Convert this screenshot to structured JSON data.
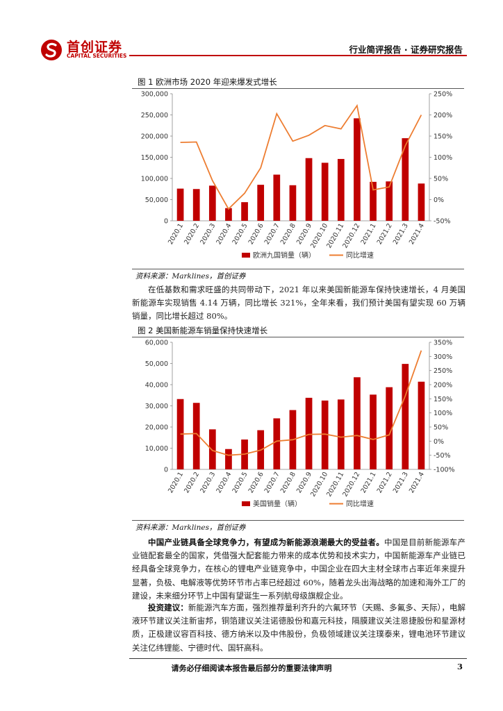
{
  "header": {
    "logo_cn": "首创证券",
    "logo_en": "CAPITAL SECURITIES",
    "report_type": "行业简评报告 · 证券研究报告",
    "brand_color": "#c00000"
  },
  "figure1": {
    "title": "图 1 欧洲市场 2020 年迎来爆发式增长",
    "source": "资料来源：Marklines，首创证券"
  },
  "figure2": {
    "title": "图 2 美国新能源车销量保持快速增长",
    "source": "资料来源：Marklines，首创证券"
  },
  "paragraphs": {
    "p1": "在低基数和需求旺盛的共同带动下，2021 年以来美国新能源车保持快速增长，4 月美国新能源车实现销售 4.14 万辆，同比增长 321%，全年来看，我们预计美国有望实现 60 万辆销量，同比增长超过 80%。",
    "p2_bold": "中国产业链具备全球竞争力，有望成为新能源浪潮最大的受益者。",
    "p2_rest": "中国是目前新能源车产业链配套最全的国家，凭借强大配套能力带来的成本优势和技术实力，中国新能源车产业链已经具备全球竞争力，在核心的锂电产业链竞争中，中国企业在四大主材全球市占率近年来提升显著，负极、电解液等优势环节市占率已经超过 60%，随着龙头出海战略的加速和海外工厂的建设，未来细分环节上中国有望诞生一系列航母级旗舰企业。",
    "p3_bold": "投资建议：",
    "p3_rest": "新能源汽车方面，强烈推荐量利齐升的六氟环节（天赐、多氟多、天际），电解液环节建议关注新宙邦，铜箔建议关注诺德股份和嘉元科技，隔膜建议关注恩捷股份和星源材质，正极建议容百科技、德方纳米以及中伟股份，负极领域建议关注璞泰来，锂电池环节建议关注亿纬锂能、宁德时代、国轩高科。"
  },
  "footer": {
    "disclaimer": "请务必仔细阅读本报告最后部分的重要法律声明",
    "page_number": "3"
  },
  "chart_data": [
    {
      "type": "bar",
      "title": "图 1 欧洲市场 2020 年迎来爆发式增长",
      "categories": [
        "2020.1",
        "2020.2",
        "2020.3",
        "2020.4",
        "2020.5",
        "2020.6",
        "2020.7",
        "2020.8",
        "2020.9",
        "2020.10",
        "2020.11",
        "2020.12",
        "2021.1",
        "2021.2",
        "2021.3",
        "2021.4"
      ],
      "series": [
        {
          "name": "欧洲九国销量（辆）",
          "type": "bar",
          "axis": "left",
          "color": "#c00000",
          "values": [
            76000,
            75000,
            83000,
            30000,
            44000,
            85000,
            109000,
            84000,
            148000,
            137000,
            146000,
            242000,
            92000,
            93000,
            195000,
            88000
          ]
        },
        {
          "name": "同比增速",
          "type": "line",
          "axis": "right",
          "color": "#ed7d31",
          "values": [
            1.35,
            1.36,
            0.45,
            -0.22,
            0.15,
            0.75,
            2.03,
            1.38,
            1.52,
            1.75,
            1.67,
            2.22,
            0.23,
            0.3,
            1.27,
            2.0
          ]
        }
      ],
      "ylim_left": [
        0,
        300000
      ],
      "yticks_left": [
        "0",
        "50,000",
        "100,000",
        "150,000",
        "200,000",
        "250,000",
        "300,000"
      ],
      "ylim_right": [
        -0.5,
        2.5
      ],
      "yticks_right": [
        "-50%",
        "0%",
        "50%",
        "100%",
        "150%",
        "200%",
        "250%"
      ],
      "legend_position": "bottom"
    },
    {
      "type": "bar",
      "title": "图 2 美国新能源车销量保持快速增长",
      "categories": [
        "2020.1",
        "2020.2",
        "2020.3",
        "2020.4",
        "2020.5",
        "2020.6",
        "2020.7",
        "2020.8",
        "2020.9",
        "2020.10",
        "2020.11",
        "2020.12",
        "2021.1",
        "2021.2",
        "2021.3",
        "2021.4"
      ],
      "series": [
        {
          "name": "美国销量（辆）",
          "type": "bar",
          "axis": "left",
          "color": "#c00000",
          "values": [
            33200,
            31400,
            18900,
            9600,
            14100,
            18500,
            24100,
            28000,
            33800,
            32500,
            33000,
            43500,
            35300,
            38800,
            49800,
            41400
          ]
        },
        {
          "name": "同比增速",
          "type": "line",
          "axis": "right",
          "color": "#ed7d31",
          "values": [
            0.25,
            0.27,
            -0.33,
            -0.5,
            -0.46,
            -0.32,
            0.0,
            0.05,
            0.24,
            0.25,
            0.14,
            0.2,
            0.06,
            0.22,
            1.6,
            3.21
          ]
        }
      ],
      "ylim_left": [
        0,
        60000
      ],
      "yticks_left": [
        "0",
        "10,000",
        "20,000",
        "30,000",
        "40,000",
        "50,000",
        "60,000"
      ],
      "ylim_right": [
        -1.0,
        3.5
      ],
      "yticks_right": [
        "-100%",
        "-50%",
        "0%",
        "50%",
        "100%",
        "150%",
        "200%",
        "250%",
        "300%",
        "350%"
      ],
      "legend_position": "bottom"
    }
  ]
}
